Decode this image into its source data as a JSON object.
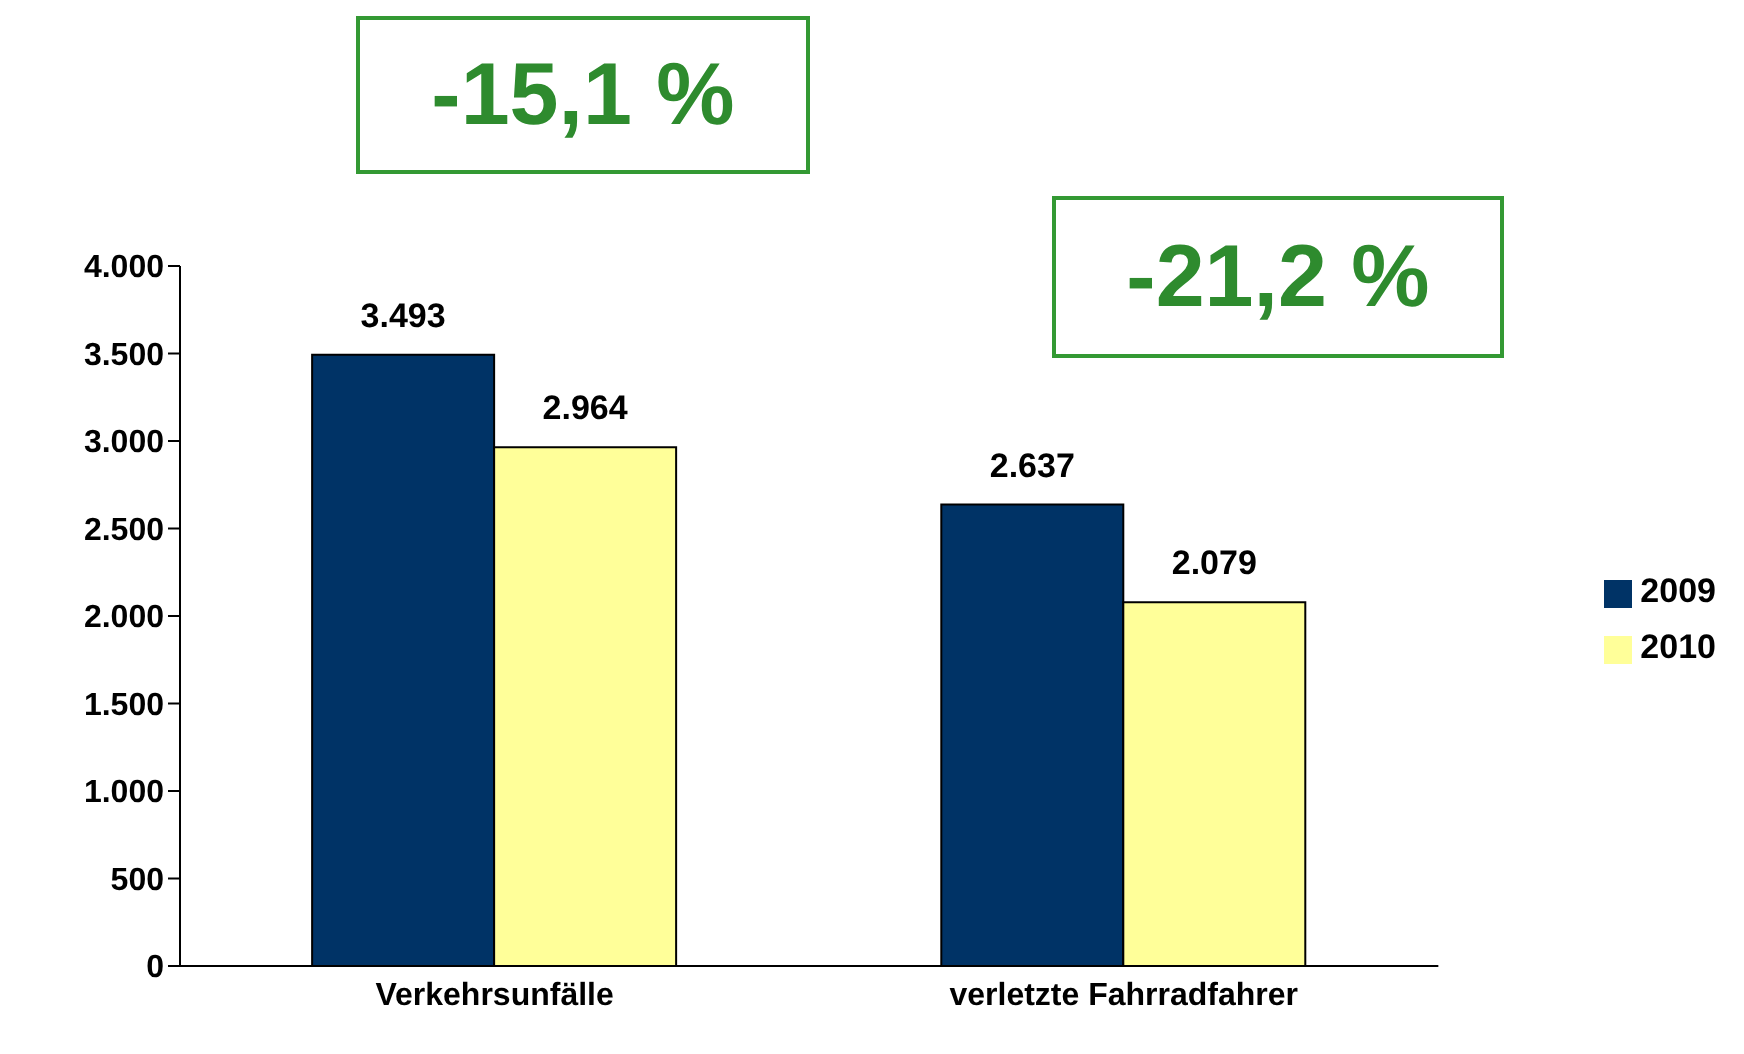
{
  "chart_data": {
    "type": "bar",
    "categories": [
      "Verkehrsunfälle",
      "verletzte Fahrradfahrer"
    ],
    "series": [
      {
        "name": "2009",
        "color": "#003366",
        "values": [
          3493,
          2637
        ],
        "value_labels": [
          "3.493",
          "2.637"
        ]
      },
      {
        "name": "2010",
        "color": "#ffff99",
        "values": [
          2964,
          2079
        ],
        "value_labels": [
          "2.964",
          "2.079"
        ]
      }
    ],
    "ylim": [
      0,
      4000
    ],
    "yticks": [
      {
        "value": 0,
        "label": "0"
      },
      {
        "value": 500,
        "label": "500"
      },
      {
        "value": 1000,
        "label": "1.000"
      },
      {
        "value": 1500,
        "label": "1.500"
      },
      {
        "value": 2000,
        "label": "2.000"
      },
      {
        "value": 2500,
        "label": "2.500"
      },
      {
        "value": 3000,
        "label": "3.000"
      },
      {
        "value": 3500,
        "label": "3.500"
      },
      {
        "value": 4000,
        "label": "4.000"
      }
    ],
    "annotations": [
      "-15,1 %",
      "-21,2 %"
    ],
    "grid": false,
    "legend": "right"
  }
}
